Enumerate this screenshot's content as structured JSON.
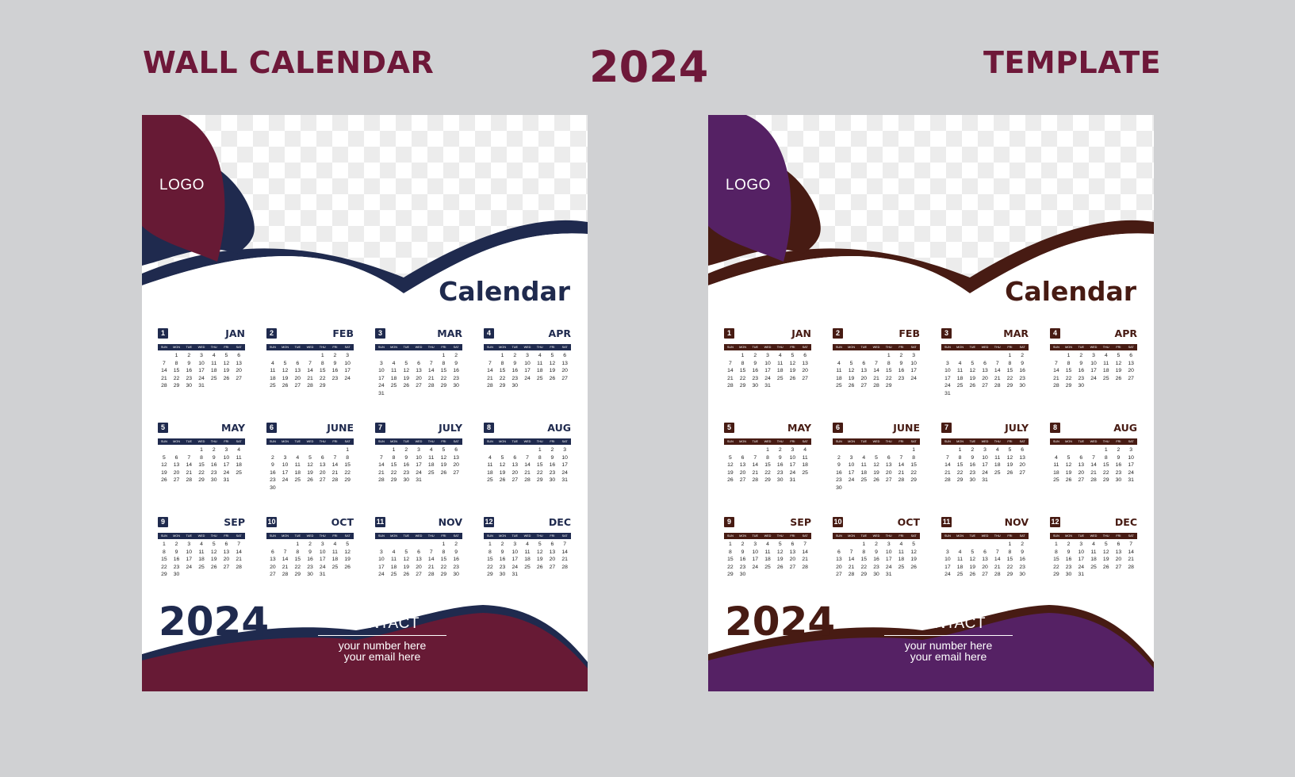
{
  "header": {
    "left_title": "WALL CALENDAR",
    "center_year": "2024",
    "right_title": "TEMPLATE"
  },
  "weekdays": [
    "SUN",
    "MON",
    "TUE",
    "WED",
    "THU",
    "FRI",
    "SAT"
  ],
  "months": [
    {
      "num": "1",
      "name": "JAN",
      "start": 1,
      "days": 31
    },
    {
      "num": "2",
      "name": "FEB",
      "start": 4,
      "days": 29
    },
    {
      "num": "3",
      "name": "MAR",
      "start": 5,
      "days": 31
    },
    {
      "num": "4",
      "name": "APR",
      "start": 1,
      "days": 30
    },
    {
      "num": "5",
      "name": "MAY",
      "start": 3,
      "days": 31
    },
    {
      "num": "6",
      "name": "JUNE",
      "start": 6,
      "days": 30
    },
    {
      "num": "7",
      "name": "JULY",
      "start": 1,
      "days": 31
    },
    {
      "num": "8",
      "name": "AUG",
      "start": 4,
      "days": 31
    },
    {
      "num": "9",
      "name": "SEP",
      "start": 0,
      "days": 30
    },
    {
      "num": "10",
      "name": "OCT",
      "start": 2,
      "days": 31
    },
    {
      "num": "11",
      "name": "NOV",
      "start": 5,
      "days": 30
    },
    {
      "num": "12",
      "name": "DEC",
      "start": 0,
      "days": 31
    }
  ],
  "sheets": [
    {
      "id": "sheet-1",
      "logo": "LOGO",
      "calendar_title": "Calendar",
      "year": "2024",
      "contact_title": "CONTACT",
      "contact_number": "your number here",
      "contact_email": "your email here",
      "colors": {
        "primary": "#671a35",
        "secondary": "#1f2a4e",
        "text": "#1f2a4e",
        "bar": "#1f2a4e",
        "footer": "#671a35"
      }
    },
    {
      "id": "sheet-2",
      "logo": "LOGO",
      "calendar_title": "Calendar",
      "year": "2024",
      "contact_title": "CONTACT",
      "contact_number": "your number here",
      "contact_email": "your email here",
      "colors": {
        "primary": "#552164",
        "secondary": "#471b13",
        "text": "#471b13",
        "bar": "#471b13",
        "footer": "#552164"
      }
    }
  ]
}
